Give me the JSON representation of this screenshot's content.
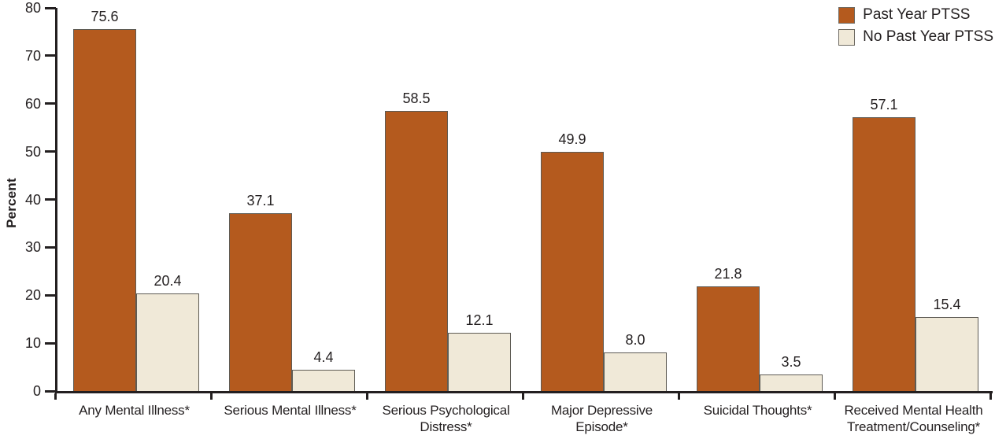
{
  "chart_data": {
    "type": "bar",
    "title": "",
    "ylabel": "Percent",
    "xlabel": "",
    "ylim": [
      0,
      80
    ],
    "yticks": [
      0,
      10,
      20,
      30,
      40,
      50,
      60,
      70,
      80
    ],
    "grid": false,
    "legend_position": "top-right",
    "value_label_decimals": 1,
    "categories": [
      "Any Mental Illness*",
      "Serious Mental Illness*",
      "Serious Psychological\nDistress*",
      "Major Depressive\nEpisode*",
      "Suicidal Thoughts*",
      "Received Mental Health\nTreatment/Counseling*"
    ],
    "series": [
      {
        "name": "Past Year PTSS",
        "color": "#B45A1E",
        "values": [
          75.6,
          37.1,
          58.5,
          49.9,
          21.8,
          57.1
        ]
      },
      {
        "name": "No Past Year PTSS",
        "color": "#F0E9D8",
        "values": [
          20.4,
          4.4,
          12.1,
          8.0,
          3.5,
          15.4
        ]
      }
    ],
    "colors": {
      "axis": "#231F20",
      "text": "#231F20",
      "bar_border": "#5E5B54"
    }
  }
}
